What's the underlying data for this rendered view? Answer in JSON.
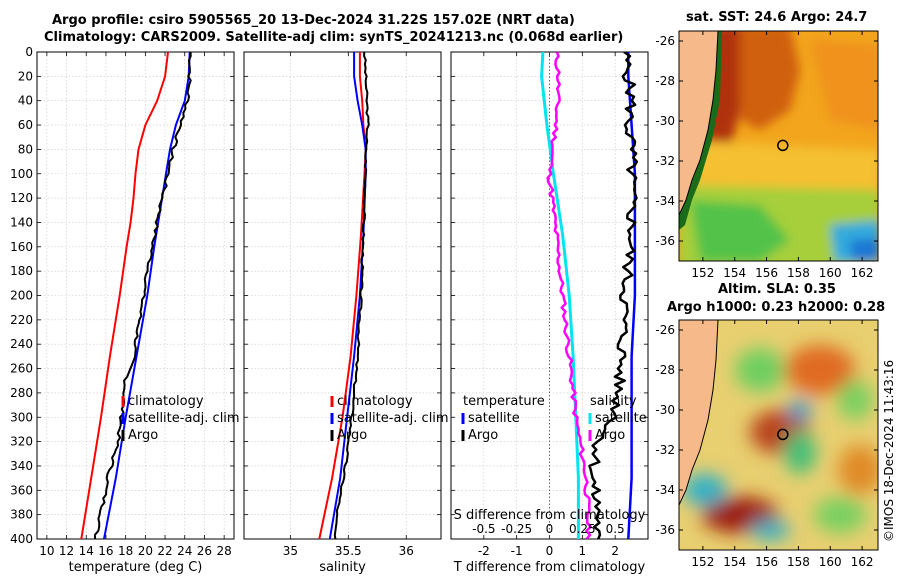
{
  "title": {
    "line1": "Argo profile: csiro 5905565_20 13-Dec-2024 31.22S 157.02E (NRT data)",
    "line2": "Climatology: CARS2009. Satellite-adj clim: synTS_20241213.nc (0.068d earlier)"
  },
  "right_titles": {
    "sst": "sat. SST: 24.6 Argo: 24.7",
    "sla1": "Altim. SLA: 0.35",
    "sla2": "Argo h1000: 0.23 h2000: 0.28"
  },
  "credit": "©IMOS 18-Dec-2024 11:43:16",
  "colors": {
    "climatology": "#ff0000",
    "satellite": "#0000ff",
    "argo": "#000000",
    "temp_sat_diff": "#0000ff",
    "sal_sat_diff": "#00e5ee",
    "sal_argo_diff": "#ff00ff",
    "land": "#f6b98a"
  },
  "chart_data": [
    {
      "type": "line",
      "name": "temperature",
      "xlabel": "temperature (deg C)",
      "ylabel": "",
      "xlim": [
        9,
        29
      ],
      "ylim": [
        400,
        0
      ],
      "xticks": [
        10,
        12,
        14,
        16,
        18,
        20,
        22,
        24,
        26,
        28
      ],
      "yticks": [
        0,
        20,
        40,
        60,
        80,
        100,
        120,
        140,
        160,
        180,
        200,
        220,
        240,
        260,
        280,
        300,
        320,
        340,
        360,
        380,
        400
      ],
      "grid": true,
      "legend": [
        "climatology",
        "satellite-adj. clim",
        "Argo"
      ],
      "series": [
        {
          "name": "climatology",
          "depth": [
            0,
            20,
            40,
            60,
            80,
            100,
            120,
            140,
            160,
            200,
            250,
            300,
            350,
            400
          ],
          "values": [
            22.3,
            22.0,
            21.2,
            20.0,
            19.3,
            19.0,
            18.8,
            18.5,
            18.1,
            17.4,
            16.4,
            15.5,
            14.5,
            13.5
          ]
        },
        {
          "name": "satellite-adj. clim",
          "depth": [
            0,
            20,
            40,
            60,
            80,
            100,
            120,
            140,
            160,
            200,
            250,
            300,
            350,
            400
          ],
          "values": [
            24.5,
            24.4,
            24.0,
            23.1,
            22.5,
            22.1,
            21.7,
            21.3,
            20.9,
            20.2,
            19.1,
            18.0,
            17.0,
            15.8
          ]
        },
        {
          "name": "Argo",
          "depth": [
            0,
            20,
            40,
            60,
            80,
            100,
            120,
            140,
            160,
            200,
            250,
            270,
            300,
            320,
            350,
            380,
            400
          ],
          "values": [
            24.6,
            24.5,
            24.3,
            23.6,
            22.8,
            22.3,
            21.7,
            21.2,
            20.7,
            19.8,
            18.8,
            18.0,
            17.6,
            17.2,
            16.2,
            15.5,
            14.9
          ]
        }
      ]
    },
    {
      "type": "line",
      "name": "salinity",
      "xlabel": "salinity",
      "xlim": [
        34.6,
        36.3
      ],
      "ylim": [
        400,
        0
      ],
      "xticks": [
        35,
        35.5,
        36
      ],
      "xticklabels": [
        "35",
        "35.5",
        "36"
      ],
      "grid": true,
      "legend": [
        "climatology",
        "satellite-adj. clim",
        "Argo"
      ],
      "series": [
        {
          "name": "climatology",
          "depth": [
            0,
            20,
            40,
            60,
            80,
            100,
            150,
            200,
            250,
            300,
            350,
            400
          ],
          "values": [
            35.6,
            35.6,
            35.62,
            35.63,
            35.65,
            35.64,
            35.61,
            35.57,
            35.52,
            35.45,
            35.36,
            35.25
          ]
        },
        {
          "name": "satellite-adj. clim",
          "depth": [
            0,
            20,
            40,
            60,
            80,
            100,
            150,
            200,
            250,
            300,
            350,
            400
          ],
          "values": [
            35.55,
            35.55,
            35.58,
            35.62,
            35.65,
            35.65,
            35.63,
            35.6,
            35.55,
            35.49,
            35.43,
            35.34
          ]
        },
        {
          "name": "Argo",
          "depth": [
            0,
            20,
            40,
            60,
            80,
            100,
            150,
            200,
            250,
            300,
            330,
            360,
            380,
            400
          ],
          "values": [
            35.64,
            35.65,
            35.66,
            35.67,
            35.65,
            35.65,
            35.63,
            35.61,
            35.58,
            35.53,
            35.49,
            35.44,
            35.4,
            35.38
          ]
        }
      ]
    },
    {
      "type": "line",
      "name": "difference",
      "xlabel": "T difference from climatology",
      "xlabel_top": "S difference from climatology",
      "xlim": [
        -3,
        3
      ],
      "ylim": [
        400,
        0
      ],
      "xticks": [
        -2,
        -1,
        0,
        1,
        2
      ],
      "xticklabels": [
        "-2",
        "-1",
        "0",
        "1",
        "2"
      ],
      "s_xticklabels": [
        "-0.5",
        "-0.25",
        "0",
        "0.25",
        "0.5"
      ],
      "legend_temperature": [
        "temperature",
        "satellite",
        "Argo"
      ],
      "legend_salinity": [
        "salinity",
        "satellite",
        "Argo"
      ],
      "series": [
        {
          "name": "temperature satellite",
          "depth": [
            0,
            20,
            60,
            100,
            150,
            200,
            250,
            300,
            350,
            400
          ],
          "values": [
            2.4,
            2.4,
            2.5,
            2.6,
            2.6,
            2.6,
            2.5,
            2.5,
            2.5,
            2.4
          ]
        },
        {
          "name": "temperature Argo",
          "depth": [
            0,
            20,
            40,
            60,
            80,
            100,
            150,
            200,
            250,
            300,
            320,
            350,
            380,
            400
          ],
          "values": [
            2.3,
            2.4,
            2.5,
            2.4,
            2.5,
            2.5,
            2.5,
            2.3,
            2.2,
            2.0,
            1.5,
            1.3,
            1.5,
            1.4
          ]
        },
        {
          "name": "salinity satellite",
          "depth": [
            0,
            20,
            60,
            100,
            150,
            200,
            250,
            300,
            350,
            400
          ],
          "values": [
            -0.05,
            -0.06,
            -0.02,
            0.03,
            0.1,
            0.15,
            0.18,
            0.2,
            0.22,
            0.22
          ]
        },
        {
          "name": "salinity Argo",
          "depth": [
            0,
            20,
            60,
            100,
            150,
            200,
            250,
            300,
            350,
            400
          ],
          "values": [
            0.05,
            0.07,
            0.05,
            0.0,
            0.05,
            0.1,
            0.15,
            0.2,
            0.28,
            0.3
          ]
        }
      ]
    },
    {
      "type": "heatmap",
      "name": "sst map",
      "xticks": [
        152,
        154,
        156,
        158,
        160,
        162
      ],
      "yticks": [
        -26,
        -28,
        -30,
        -32,
        -34,
        -36
      ],
      "ylim": [
        -37,
        -25.5
      ],
      "xlim": [
        150.5,
        163
      ],
      "marker": {
        "lon": 157.02,
        "lat": -31.22
      }
    },
    {
      "type": "heatmap",
      "name": "sla map",
      "xticks": [
        152,
        154,
        156,
        158,
        160,
        162
      ],
      "yticks": [
        -26,
        -28,
        -30,
        -32,
        -34,
        -36
      ],
      "ylim": [
        -37,
        -25.5
      ],
      "xlim": [
        150.5,
        163
      ],
      "marker": {
        "lon": 157.02,
        "lat": -31.22
      }
    }
  ]
}
